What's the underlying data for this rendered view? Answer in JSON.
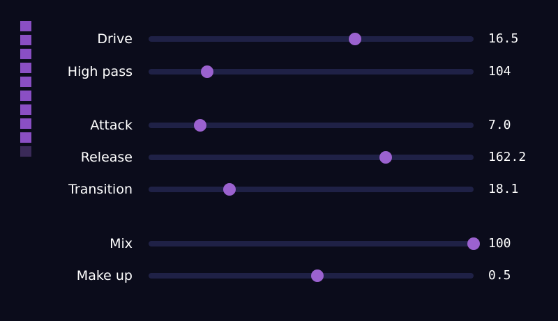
{
  "colors": {
    "background": "#0b0c1b",
    "track": "#1f2146",
    "thumb": "#9b62cf",
    "meter_on": "#8a4fc4",
    "meter_off": "#3a2a58",
    "text": "#ffffff"
  },
  "meter": {
    "segments_total": 10,
    "segments_lit": 9
  },
  "controls": [
    {
      "label": "Drive",
      "value": "16.5",
      "position": 0.635
    },
    {
      "label": "High pass",
      "value": "104",
      "position": 0.18
    },
    {
      "label": "Attack",
      "value": "7.0",
      "position": 0.158
    },
    {
      "label": "Release",
      "value": "162.2",
      "position": 0.73
    },
    {
      "label": "Transition",
      "value": "18.1",
      "position": 0.249
    },
    {
      "label": "Mix",
      "value": "100",
      "position": 1.0
    },
    {
      "label": "Make up",
      "value": "0.5",
      "position": 0.52
    }
  ]
}
